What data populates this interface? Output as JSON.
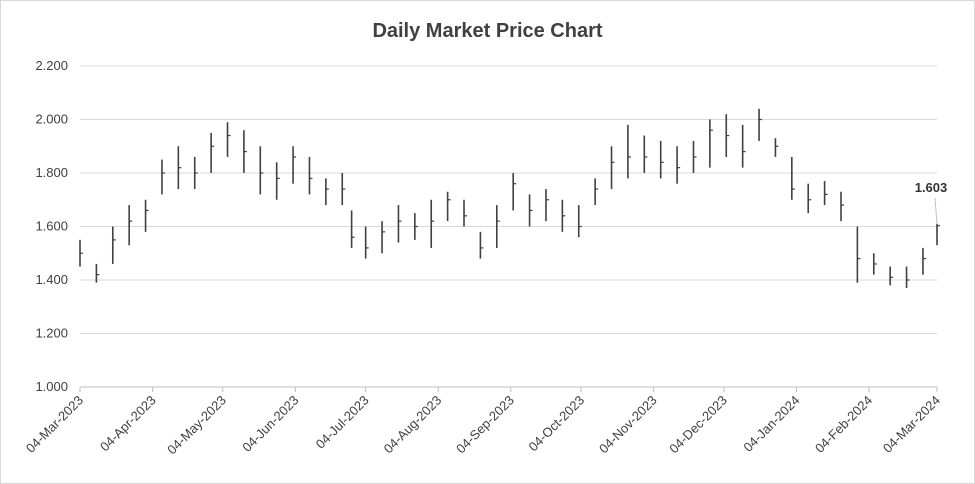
{
  "chart_data": {
    "type": "ohlc",
    "title": "Daily Market Price Chart",
    "xlabel": "",
    "ylabel": "",
    "ylim": [
      1.0,
      2.2
    ],
    "y_ticks": [
      "1.000",
      "1.200",
      "1.400",
      "1.600",
      "1.800",
      "2.000",
      "2.200"
    ],
    "x_ticks": [
      "04-Mar-2023",
      "04-Apr-2023",
      "04-May-2023",
      "04-Jun-2023",
      "04-Jul-2023",
      "04-Aug-2023",
      "04-Sep-2023",
      "04-Oct-2023",
      "04-Nov-2023",
      "04-Dec-2023",
      "04-Jan-2024",
      "04-Feb-2024",
      "04-Mar-2024"
    ],
    "grid": true,
    "last_value_label": "1.603",
    "bar_color": "#404040",
    "x": [
      "2023-03-04",
      "2023-03-11",
      "2023-03-18",
      "2023-03-25",
      "2023-04-01",
      "2023-04-08",
      "2023-04-15",
      "2023-04-22",
      "2023-04-29",
      "2023-05-06",
      "2023-05-13",
      "2023-05-20",
      "2023-05-27",
      "2023-06-03",
      "2023-06-10",
      "2023-06-17",
      "2023-06-24",
      "2023-06-28",
      "2023-07-04",
      "2023-07-11",
      "2023-07-18",
      "2023-07-25",
      "2023-08-01",
      "2023-08-08",
      "2023-08-15",
      "2023-08-22",
      "2023-08-29",
      "2023-09-05",
      "2023-09-12",
      "2023-09-19",
      "2023-09-26",
      "2023-10-03",
      "2023-10-10",
      "2023-10-17",
      "2023-10-24",
      "2023-10-31",
      "2023-11-07",
      "2023-11-14",
      "2023-11-21",
      "2023-11-28",
      "2023-12-05",
      "2023-12-12",
      "2023-12-19",
      "2023-12-26",
      "2024-01-02",
      "2024-01-09",
      "2024-01-16",
      "2024-01-23",
      "2024-01-30",
      "2024-02-06",
      "2024-02-13",
      "2024-02-20",
      "2024-02-27",
      "2024-03-04"
    ],
    "series": [
      {
        "high": [
          1.55,
          1.46,
          1.6,
          1.68,
          1.7,
          1.85,
          1.9,
          1.86,
          1.95,
          1.99,
          1.96,
          1.9,
          1.84,
          1.9,
          1.86,
          1.78,
          1.8,
          1.66,
          1.6,
          1.62,
          1.68,
          1.65,
          1.7,
          1.73,
          1.7,
          1.58,
          1.68,
          1.8,
          1.72,
          1.74,
          1.7,
          1.68,
          1.78,
          1.9,
          1.98,
          1.94,
          1.92,
          1.9,
          1.92,
          2.0,
          2.02,
          1.98,
          2.04,
          1.93,
          1.86,
          1.76,
          1.77,
          1.73,
          1.6,
          1.5,
          1.45,
          1.45,
          1.52,
          1.61
        ],
        "low": [
          1.45,
          1.39,
          1.46,
          1.53,
          1.58,
          1.72,
          1.74,
          1.74,
          1.8,
          1.86,
          1.8,
          1.72,
          1.7,
          1.76,
          1.72,
          1.68,
          1.68,
          1.52,
          1.48,
          1.5,
          1.54,
          1.55,
          1.52,
          1.62,
          1.6,
          1.48,
          1.52,
          1.66,
          1.6,
          1.62,
          1.58,
          1.56,
          1.68,
          1.74,
          1.78,
          1.8,
          1.78,
          1.76,
          1.8,
          1.82,
          1.86,
          1.82,
          1.92,
          1.86,
          1.7,
          1.65,
          1.68,
          1.62,
          1.39,
          1.42,
          1.38,
          1.37,
          1.42,
          1.53
        ],
        "close": [
          1.5,
          1.42,
          1.55,
          1.62,
          1.66,
          1.8,
          1.82,
          1.8,
          1.9,
          1.94,
          1.88,
          1.8,
          1.78,
          1.86,
          1.78,
          1.74,
          1.74,
          1.56,
          1.52,
          1.58,
          1.62,
          1.6,
          1.62,
          1.7,
          1.64,
          1.52,
          1.62,
          1.76,
          1.66,
          1.7,
          1.64,
          1.6,
          1.74,
          1.84,
          1.86,
          1.86,
          1.84,
          1.82,
          1.86,
          1.96,
          1.94,
          1.88,
          2.0,
          1.9,
          1.74,
          1.7,
          1.72,
          1.68,
          1.48,
          1.46,
          1.41,
          1.4,
          1.48,
          1.603
        ]
      }
    ]
  }
}
